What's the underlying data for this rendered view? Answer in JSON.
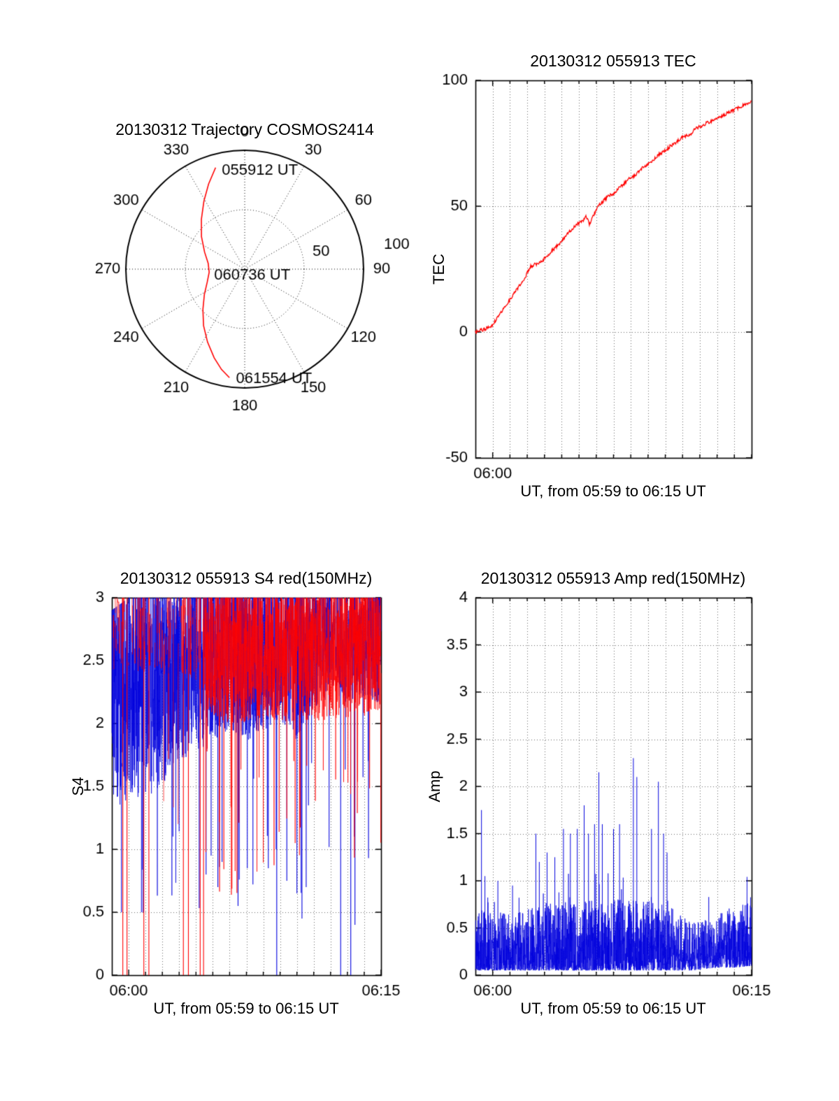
{
  "colors": {
    "trace_red": "#ff0000",
    "trace_blue": "#0000cc",
    "axis": "#000000",
    "grid": "#555555"
  },
  "chart_data": [
    {
      "id": "trajectory",
      "type": "polar-trajectory",
      "title": "20130312 Trajectory COSMOS2414",
      "azimuth_ticks": [
        0,
        30,
        60,
        90,
        120,
        150,
        180,
        210,
        240,
        270,
        300,
        330
      ],
      "outer_extra_label": "100",
      "radial_label": "50",
      "annotations": [
        {
          "label": "055912 UT",
          "az": 344,
          "el": 10
        },
        {
          "label": "060736 UT",
          "az": 265,
          "el": 62
        },
        {
          "label": "061554 UT",
          "az": 188,
          "el": 8
        }
      ],
      "trajectory_az_el": [
        [
          344,
          10
        ],
        [
          337,
          20
        ],
        [
          329,
          30
        ],
        [
          319,
          40
        ],
        [
          307,
          49
        ],
        [
          293,
          57
        ],
        [
          279,
          62
        ],
        [
          265,
          63
        ],
        [
          251,
          60
        ],
        [
          238,
          54
        ],
        [
          226,
          46
        ],
        [
          216,
          37
        ],
        [
          207,
          28
        ],
        [
          199,
          19
        ],
        [
          193,
          12
        ],
        [
          188,
          7
        ]
      ]
    },
    {
      "id": "tec",
      "type": "line",
      "title": "20130312 055913 TEC",
      "xlabel": "UT, from 05:59 to 06:15 UT",
      "ylabel": "TEC",
      "ylim": [
        -50,
        100
      ],
      "yticks": [
        -50,
        0,
        50,
        100
      ],
      "xlim_minutes": [
        0,
        16
      ],
      "xticks": [
        {
          "label": "06:00",
          "minute": 1
        }
      ],
      "grid": "dotted",
      "series": [
        {
          "name": "TEC",
          "color": "#ff0000",
          "points_t": [
            0,
            0.2,
            0.5,
            0.8,
            1.0,
            1.3,
            1.6,
            2.0,
            2.3,
            2.6,
            2.9,
            3.1,
            3.2,
            3.5,
            3.8,
            4.1,
            4.4,
            4.7,
            5.0,
            5.3,
            5.6,
            5.9,
            6.2,
            6.4,
            6.6,
            6.9,
            7.1,
            7.4,
            7.7,
            8.0,
            8.3,
            8.6,
            8.9,
            9.2,
            9.5,
            9.8,
            10.1,
            10.4,
            10.7,
            11.0,
            11.3,
            11.6,
            11.9,
            12.2,
            12.5,
            12.8,
            13.1,
            13.4,
            13.7,
            14.0,
            14.3,
            14.6,
            14.9,
            15.2,
            15.5,
            15.8,
            16.0
          ],
          "points_v": [
            0,
            0.5,
            1,
            2,
            3,
            6,
            9,
            13,
            16,
            19,
            22,
            25,
            26,
            27,
            28,
            30,
            32,
            34,
            36,
            39,
            41,
            43,
            44,
            46,
            43,
            47,
            50,
            52,
            54,
            55,
            57,
            59,
            61,
            62,
            64,
            66,
            67,
            69,
            71,
            72,
            74,
            75,
            77,
            78,
            79,
            81,
            82,
            83,
            84,
            85,
            86,
            87,
            88,
            89,
            90,
            91,
            92
          ]
        }
      ]
    },
    {
      "id": "s4",
      "type": "scintillation",
      "title": "20130312 055913 S4 red(150MHz)",
      "xlabel": "UT, from 05:59 to 06:15 UT",
      "ylabel": "S4",
      "ylim": [
        0,
        3
      ],
      "yticks": [
        0,
        0.5,
        1,
        1.5,
        2,
        2.5,
        3
      ],
      "xlim_minutes": [
        0,
        16
      ],
      "xticks": [
        {
          "label": "06:00",
          "minute": 1
        },
        {
          "label": "06:15",
          "minute": 16
        }
      ],
      "grid": "dotted",
      "series": [
        {
          "name": "S4-blue",
          "color": "#0000dd",
          "style": "dense",
          "envelope": [
            [
              0,
              1.1,
              2.9
            ],
            [
              1,
              1.15,
              3
            ],
            [
              2,
              1.2,
              3
            ],
            [
              3,
              1.25,
              3
            ],
            [
              4,
              1.5,
              3
            ],
            [
              5,
              1.6,
              3
            ],
            [
              6,
              1.7,
              3
            ],
            [
              7,
              1.8,
              3
            ],
            [
              8,
              1.7,
              3
            ],
            [
              9,
              1.8,
              3
            ],
            [
              10,
              1.9,
              3
            ],
            [
              11,
              1.7,
              3
            ],
            [
              12,
              2.0,
              3
            ],
            [
              13,
              2.1,
              3
            ],
            [
              14,
              2.05,
              3
            ],
            [
              15,
              2.1,
              3
            ],
            [
              16,
              2.0,
              3
            ]
          ],
          "drops": [
            [
              5.6,
              0.8
            ],
            [
              5.9,
              0.95
            ],
            [
              6.3,
              0.7
            ],
            [
              6.55,
              0.9
            ],
            [
              7.5,
              0.55
            ],
            [
              8.05,
              0.85
            ],
            [
              9.3,
              0.85
            ],
            [
              9.8,
              0
            ],
            [
              10.4,
              0.75
            ],
            [
              11.0,
              0.65
            ],
            [
              11.3,
              0.45
            ],
            [
              11.55,
              0.7
            ],
            [
              13.6,
              0
            ],
            [
              14.2,
              0
            ],
            [
              14.45,
              0.4
            ]
          ]
        },
        {
          "name": "S4-red-150MHz",
          "color": "#ff0000",
          "style": "dense",
          "sparse_before_minute": 5.5,
          "envelope": [
            [
              0,
              2.35,
              3
            ],
            [
              3,
              2.3,
              3
            ],
            [
              5,
              2.2,
              3
            ],
            [
              6,
              1.9,
              3
            ],
            [
              7,
              1.85,
              3
            ],
            [
              9,
              1.9,
              3
            ],
            [
              11,
              1.85,
              3
            ],
            [
              13,
              1.9,
              3
            ],
            [
              16,
              1.95,
              3
            ]
          ],
          "drops": [
            [
              0.65,
              0
            ],
            [
              0.9,
              0
            ],
            [
              1.9,
              0
            ],
            [
              2.2,
              0
            ],
            [
              4.25,
              0
            ],
            [
              4.55,
              0
            ],
            [
              5.25,
              0
            ],
            [
              5.45,
              0
            ]
          ]
        }
      ]
    },
    {
      "id": "amp",
      "type": "scintillation",
      "title": "20130312 055913 Amp red(150MHz)",
      "xlabel": "UT, from 05:59 to 06:15 UT",
      "ylabel": "Amp",
      "ylim": [
        0,
        4
      ],
      "yticks": [
        0,
        0.5,
        1,
        1.5,
        2,
        2.5,
        3,
        3.5,
        4
      ],
      "xlim_minutes": [
        0,
        16
      ],
      "xticks": [
        {
          "label": "06:00",
          "minute": 1
        },
        {
          "label": "06:15",
          "minute": 16
        }
      ],
      "grid": "dotted",
      "series": [
        {
          "name": "Amp-blue",
          "color": "#0000dd",
          "style": "spiky-baseline",
          "envelope": [
            [
              0,
              0.05,
              0.7
            ],
            [
              2,
              0.05,
              0.65
            ],
            [
              4,
              0.05,
              0.75
            ],
            [
              6,
              0.05,
              0.8
            ],
            [
              8,
              0.05,
              0.8
            ],
            [
              10,
              0.05,
              0.85
            ],
            [
              11.5,
              0.05,
              0.7
            ],
            [
              12.5,
              0.05,
              0.55
            ],
            [
              14,
              0.08,
              0.6
            ],
            [
              15,
              0.08,
              0.7
            ],
            [
              16,
              0.1,
              0.8
            ]
          ],
          "spikes": [
            [
              0.35,
              1.75
            ],
            [
              0.55,
              1.05
            ],
            [
              1.3,
              1.0
            ],
            [
              2.15,
              0.95
            ],
            [
              3.5,
              1.5
            ],
            [
              3.7,
              1.2
            ],
            [
              4.15,
              1.3
            ],
            [
              4.6,
              1.25
            ],
            [
              5.1,
              1.55
            ],
            [
              5.5,
              1.5
            ],
            [
              5.9,
              1.55
            ],
            [
              6.3,
              1.8
            ],
            [
              6.55,
              1.5
            ],
            [
              6.9,
              1.6
            ],
            [
              7.15,
              2.15
            ],
            [
              7.35,
              1.6
            ],
            [
              8.0,
              1.55
            ],
            [
              8.35,
              1.6
            ],
            [
              9.15,
              2.3
            ],
            [
              9.35,
              2.1
            ],
            [
              10.2,
              1.55
            ],
            [
              10.6,
              2.05
            ],
            [
              10.9,
              1.5
            ],
            [
              11.1,
              1.3
            ]
          ]
        }
      ]
    }
  ]
}
